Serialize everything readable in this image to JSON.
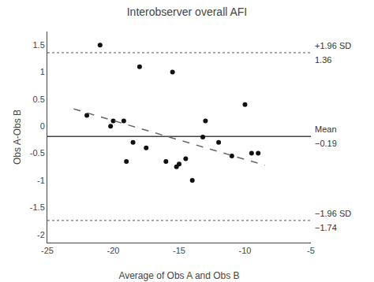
{
  "chart_data": {
    "type": "scatter",
    "title": "Interobserver overall AFI",
    "xlabel": "Average of Obs A and Obs B",
    "ylabel": "Obs A-Obs B",
    "x": [
      -22,
      -21,
      -20.2,
      -20,
      -19.2,
      -19,
      -18.5,
      -18,
      -17.5,
      -16,
      -15.5,
      -15.2,
      -15,
      -14.5,
      -14,
      -13.2,
      -13,
      -12,
      -11,
      -10,
      -9.5,
      -9
    ],
    "values": [
      0.2,
      1.5,
      0.0,
      0.1,
      0.1,
      -0.65,
      -0.3,
      1.1,
      -0.4,
      -0.65,
      1.0,
      -0.75,
      -0.7,
      -0.6,
      -1.0,
      -0.2,
      0.1,
      -0.3,
      -0.55,
      0.4,
      -0.5,
      -0.5
    ],
    "color": "#111111",
    "marker": "circle",
    "trend": {
      "x": [
        -23,
        -8.5
      ],
      "values": [
        0.32,
        -0.72
      ],
      "color": "#666666",
      "line_style": "dashed"
    },
    "reference_lines": [
      {
        "value": 1.36,
        "label": "+1.96 SD",
        "value_label": "1.36",
        "color": "#777777",
        "line_style": "dotted"
      },
      {
        "value": -0.19,
        "label": "Mean",
        "value_label": "−0.19",
        "color": "#444444",
        "line_style": "solid"
      },
      {
        "value": -1.74,
        "label": "−1.96 SD",
        "value_label": "−1.74",
        "color": "#777777",
        "line_style": "dotted"
      }
    ],
    "annotation_color": "#333333",
    "xlim": [
      -25,
      -5
    ],
    "ylim": [
      -2.15,
      1.75
    ],
    "xticks": [
      -25,
      -20,
      -15,
      -10,
      -5
    ],
    "yticks": [
      -2.0,
      -1.5,
      -1.0,
      -0.5,
      0.0,
      0.5,
      1.0,
      1.5
    ],
    "grid": false
  }
}
